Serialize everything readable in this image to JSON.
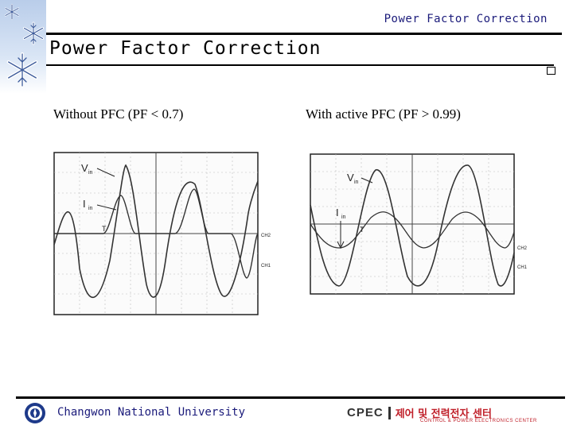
{
  "header": {
    "top_label": "Power Factor Correction",
    "title": "Power Factor Correction"
  },
  "captions": {
    "left": "Without PFC  (PF < 0.7)",
    "right": "With active PFC (PF > 0.99)"
  },
  "plots": {
    "left": {
      "v_label": "V",
      "v_sub": "in",
      "i_label": "I",
      "i_sub": "in",
      "ch2": "CH2",
      "ch1": "CH1",
      "trigger_marker": "T"
    },
    "right": {
      "v_label": "V",
      "v_sub": "in",
      "i_label": "I",
      "i_sub": "in",
      "ch2": "CH2",
      "ch1": "CH1",
      "trigger_marker": "T"
    }
  },
  "footer": {
    "university": "Changwon National University",
    "cpec_name": "CPEC",
    "cpec_korean": "제어 및 전력전자 센터",
    "cpec_sub": "CONTROL & POWER ELECTRONICS CENTER"
  },
  "colors": {
    "rule": "#000000",
    "footer_text": "#1a1a7a",
    "logo_red": "#c0202a",
    "strip": "#b9cdea"
  },
  "icons": [
    "snowflake-icon",
    "university-emblem-icon",
    "cpec-logo-icon"
  ]
}
